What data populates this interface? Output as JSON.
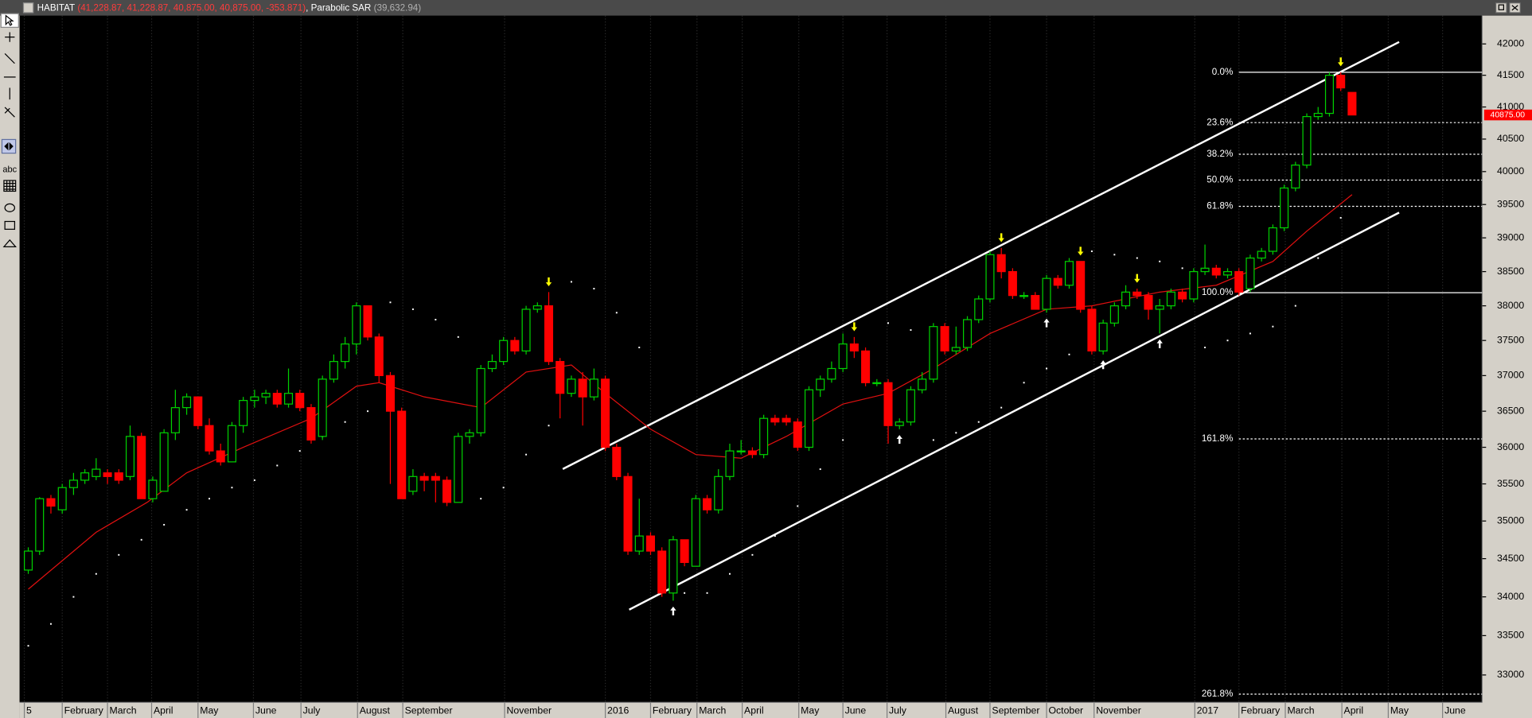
{
  "header": {
    "symbol": "HABITAT",
    "ohlc": "(41,228.87, 41,228.87, 40,875.00, 40,875.00, -353.871)",
    "indicator": "Parabolic SAR",
    "indicator_value": "(39,632.94)"
  },
  "toolbar": {
    "text_tool": "abc"
  },
  "chart_data": {
    "type": "candlestick",
    "up_color": "#00d000",
    "down_color": "#ff0000",
    "open": [
      34350,
      34600,
      35300,
      35150,
      35450,
      35550,
      35600,
      35650,
      35650,
      35600,
      36150,
      35300,
      35400,
      36200,
      36550,
      36700,
      36300,
      35950,
      35800,
      36300,
      36650,
      36700,
      36750,
      36600,
      36750,
      36550,
      36150,
      36950,
      37200,
      37450,
      38000,
      37550,
      37000,
      36500,
      35400,
      35600,
      35600,
      35550,
      35250,
      36150,
      36200,
      37100,
      37200,
      37500,
      37350,
      37950,
      38000,
      37200,
      36750,
      36950,
      36700,
      36950,
      36000,
      35600,
      34600,
      34800,
      34600,
      34050,
      34750,
      34400,
      35300,
      35150,
      35600,
      35950,
      35950,
      35900,
      36400,
      36400,
      36350,
      36000,
      36800,
      36950,
      37100,
      37450,
      37350,
      36900,
      36900,
      36300,
      36350,
      36800,
      36950,
      37700,
      37350,
      37400,
      37800,
      38100,
      38750,
      38500,
      38150,
      38150,
      37950,
      38400,
      38300,
      38650,
      37950,
      37350,
      37750,
      38000,
      38200,
      38150,
      37950,
      38000,
      38200,
      38100,
      38500,
      38550,
      38450,
      38500,
      38250,
      38700,
      38800,
      39150,
      39750,
      40100,
      40850,
      40900,
      41500,
      41228.87
    ],
    "high": [
      34650,
      35320,
      35350,
      35500,
      35650,
      35700,
      35850,
      35700,
      35700,
      36300,
      36200,
      35600,
      36250,
      36800,
      36750,
      36700,
      36400,
      36050,
      36350,
      36700,
      36800,
      36800,
      36800,
      37100,
      36800,
      36600,
      37000,
      37300,
      37550,
      38050,
      38000,
      37600,
      37050,
      36550,
      35700,
      35650,
      35650,
      35600,
      36200,
      36250,
      37150,
      37300,
      37550,
      37550,
      38000,
      38050,
      38200,
      37250,
      37000,
      37050,
      37100,
      37000,
      36050,
      35650,
      35300,
      34850,
      34650,
      34800,
      34750,
      35350,
      35350,
      35700,
      36050,
      36100,
      36000,
      36450,
      36450,
      36450,
      36400,
      36850,
      37000,
      37200,
      37600,
      37550,
      37400,
      36950,
      36950,
      36400,
      36850,
      37050,
      37750,
      37750,
      37700,
      37850,
      38150,
      38800,
      38850,
      38550,
      38200,
      38200,
      38450,
      38450,
      38700,
      38650,
      38000,
      37800,
      38050,
      38300,
      38250,
      38200,
      38100,
      38250,
      38250,
      38550,
      38900,
      38600,
      38550,
      38550,
      38750,
      38850,
      39200,
      39800,
      40150,
      40900,
      41000,
      41550,
      41550,
      41228.87
    ],
    "low": [
      34300,
      34550,
      35100,
      35100,
      35350,
      35500,
      35550,
      35500,
      35500,
      35550,
      35300,
      35250,
      35400,
      36100,
      36450,
      36250,
      35900,
      35750,
      35800,
      36200,
      36550,
      36600,
      36550,
      36550,
      36500,
      36050,
      36100,
      36900,
      37100,
      37300,
      37500,
      36900,
      35500,
      35300,
      35350,
      35400,
      35250,
      35200,
      35250,
      36050,
      36150,
      37050,
      37150,
      37300,
      37300,
      37900,
      37150,
      36400,
      36700,
      36300,
      36650,
      35950,
      35550,
      34550,
      34550,
      34550,
      34000,
      33950,
      34400,
      34400,
      35100,
      35100,
      35550,
      35900,
      35850,
      35850,
      36300,
      36300,
      35950,
      35950,
      36700,
      36900,
      37050,
      37250,
      36850,
      36850,
      36050,
      36250,
      36300,
      36750,
      36900,
      37300,
      37300,
      37350,
      37750,
      38050,
      38400,
      38100,
      38100,
      37950,
      37900,
      38250,
      38250,
      37900,
      37300,
      37300,
      37700,
      37950,
      38100,
      37800,
      37600,
      37950,
      38050,
      38050,
      38450,
      38400,
      38400,
      38150,
      38200,
      38650,
      38750,
      39100,
      39700,
      40050,
      40800,
      40850,
      41250,
      40875
    ],
    "close": [
      34600,
      35300,
      35200,
      35450,
      35550,
      35650,
      35700,
      35600,
      35550,
      36150,
      35300,
      35550,
      36200,
      36550,
      36700,
      36300,
      35950,
      35800,
      36300,
      36650,
      36700,
      36750,
      36600,
      36750,
      36550,
      36100,
      36950,
      37200,
      37450,
      38000,
      37550,
      37000,
      36500,
      35300,
      35600,
      35550,
      35550,
      35250,
      36150,
      36200,
      37100,
      37200,
      37500,
      37350,
      37950,
      38000,
      37200,
      36750,
      36950,
      36700,
      36950,
      36000,
      35600,
      34600,
      34800,
      34600,
      34050,
      34750,
      34450,
      35300,
      35150,
      35600,
      35950,
      35950,
      35900,
      36400,
      36350,
      36350,
      36000,
      36800,
      36950,
      37100,
      37450,
      37350,
      36900,
      36900,
      36300,
      36350,
      36800,
      36950,
      37700,
      37350,
      37400,
      37800,
      38100,
      38750,
      38500,
      38150,
      38150,
      37950,
      38400,
      38300,
      38650,
      37950,
      37350,
      37750,
      38000,
      38200,
      38150,
      37950,
      38000,
      38200,
      38100,
      38500,
      38550,
      38450,
      38500,
      38200,
      38700,
      38800,
      39150,
      39750,
      40100,
      40850,
      40900,
      41500,
      41300,
      40875
    ],
    "moving_average": {
      "color": "#e01010",
      "x": [
        0,
        6,
        10.5,
        14,
        19,
        25,
        29,
        31,
        35,
        40,
        44,
        48,
        51,
        55,
        59,
        63,
        67,
        72,
        76,
        80,
        85,
        90,
        94,
        100,
        105,
        110,
        113,
        117
      ],
      "values": [
        34100,
        34850,
        35250,
        35650,
        36000,
        36400,
        36850,
        36900,
        36700,
        36550,
        37050,
        37150,
        36750,
        36250,
        35900,
        35850,
        36150,
        36600,
        36750,
        37100,
        37600,
        37950,
        38000,
        38200,
        38300,
        38650,
        39100,
        39650
      ]
    },
    "sar": {
      "color": "#ffffff",
      "x": [
        0,
        2,
        4,
        6,
        8,
        10,
        12,
        14,
        16,
        18,
        20,
        22,
        24,
        26,
        28,
        30,
        32,
        34,
        36,
        38,
        40,
        42,
        44,
        46,
        48,
        50,
        52,
        54,
        58,
        60,
        62,
        64,
        66,
        68,
        70,
        72,
        76,
        78,
        80,
        82,
        84,
        86,
        88,
        90,
        92,
        94,
        96,
        98,
        100,
        102,
        104,
        106,
        108,
        110,
        112,
        114,
        116
      ],
      "values": [
        33370,
        33650,
        34000,
        34300,
        34550,
        34750,
        34950,
        35150,
        35300,
        35450,
        35550,
        35750,
        35950,
        36150,
        36350,
        36500,
        38050,
        37950,
        37800,
        37550,
        35300,
        35450,
        35900,
        36300,
        38350,
        38250,
        37900,
        37400,
        34050,
        34050,
        34300,
        34550,
        34800,
        35200,
        35700,
        36100,
        37750,
        37650,
        36100,
        36200,
        36350,
        36550,
        36900,
        37100,
        37300,
        38800,
        38750,
        38700,
        38650,
        38550,
        37400,
        37500,
        37600,
        37700,
        38000,
        38700,
        39300
      ]
    },
    "channels": [
      {
        "color": "#ffffff",
        "x": [
          47.24,
          121.16
        ],
        "values": [
          35702,
          42031
        ]
      },
      {
        "color": "#ffffff",
        "x": [
          53.11,
          121.16
        ],
        "values": [
          33834,
          39378
        ]
      }
    ],
    "fibonacci": {
      "color": "#ffffff",
      "levels": [
        {
          "value": 41548,
          "label": "0.0%"
        },
        {
          "value": 40756,
          "label": "23.6%"
        },
        {
          "value": 40266,
          "label": "38.2%"
        },
        {
          "value": 39870,
          "label": "50.0%"
        },
        {
          "value": 39473,
          "label": "61.8%"
        },
        {
          "value": 38191,
          "label": "100.0%"
        },
        {
          "value": 36116,
          "label": "161.8%"
        },
        {
          "value": 32759,
          "label": "261.8%"
        }
      ]
    },
    "signals": {
      "down": [
        46,
        73,
        86,
        93,
        98,
        116
      ],
      "up": [
        57,
        77,
        90,
        95,
        100
      ],
      "down_color": "#ffff00",
      "up_color": "#ffffff"
    },
    "last_price": {
      "value": 40875,
      "label": "40875.00",
      "color": "#ff0000"
    },
    "log_scale": true,
    "ylim": [
      32656,
      42457
    ],
    "yticks": [
      33000,
      33500,
      34000,
      34500,
      35000,
      35500,
      36000,
      36500,
      37000,
      37500,
      38000,
      38500,
      39000,
      39500,
      40000,
      40500,
      41000,
      41500,
      42000
    ],
    "xlim": [
      -0.6,
      128.5
    ],
    "xticks": [
      {
        "value": -0.35,
        "label": "5"
      },
      {
        "value": 3.0,
        "label": "February"
      },
      {
        "value": 7.0,
        "label": "March"
      },
      {
        "value": 10.9,
        "label": "April"
      },
      {
        "value": 15.0,
        "label": "May"
      },
      {
        "value": 19.9,
        "label": "June"
      },
      {
        "value": 24.1,
        "label": "July"
      },
      {
        "value": 29.1,
        "label": "August"
      },
      {
        "value": 33.1,
        "label": "September"
      },
      {
        "value": 42.1,
        "label": "November"
      },
      {
        "value": 51.0,
        "label": "2016"
      },
      {
        "value": 55.0,
        "label": "February"
      },
      {
        "value": 59.1,
        "label": "March"
      },
      {
        "value": 63.1,
        "label": "April"
      },
      {
        "value": 68.1,
        "label": "May"
      },
      {
        "value": 72.0,
        "label": "June"
      },
      {
        "value": 75.9,
        "label": "July"
      },
      {
        "value": 81.1,
        "label": "August"
      },
      {
        "value": 85.0,
        "label": "September"
      },
      {
        "value": 90.0,
        "label": "October"
      },
      {
        "value": 94.2,
        "label": "November"
      },
      {
        "value": 103.1,
        "label": "2017"
      },
      {
        "value": 107.0,
        "label": "February"
      },
      {
        "value": 111.1,
        "label": "March"
      },
      {
        "value": 116.1,
        "label": "April"
      },
      {
        "value": 120.2,
        "label": "May"
      },
      {
        "value": 125.0,
        "label": "June"
      }
    ],
    "grid": true
  }
}
